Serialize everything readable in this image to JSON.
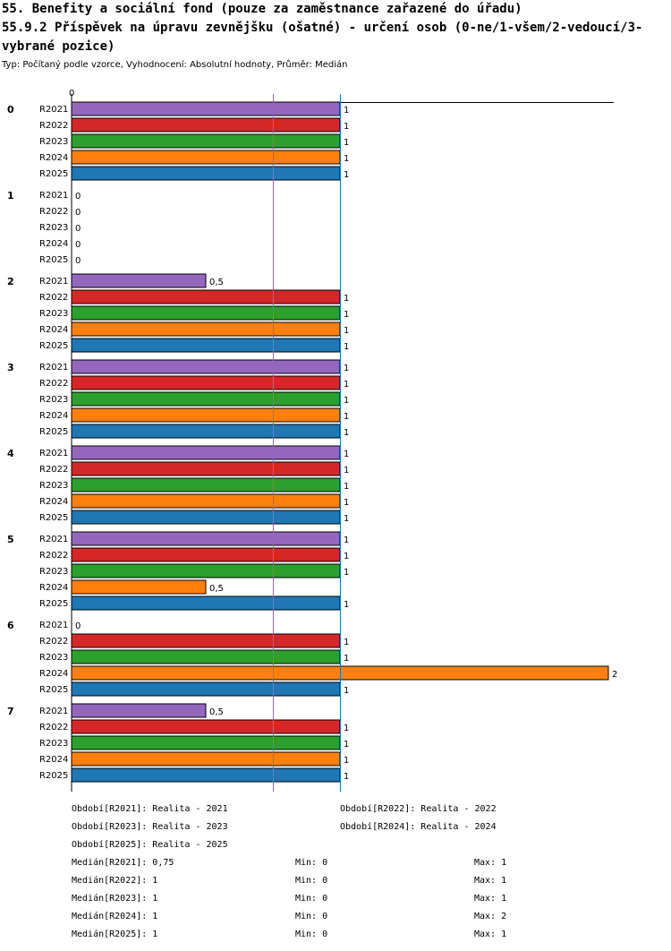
{
  "title": "55. Benefity a sociální fond (pouze za zaměstnance zařazené do úřadu)\n55.9.2 Příspěvek na úpravu zevnějšku (ošatné) - určení osob (0-ne/1-všem/2-vedoucí/3-vybrané pozice)",
  "subtitle": "Typ: Počítaný podle vzorce, Vyhodnocení: Absolutní hodnoty, Průměr: Medián",
  "colors": {
    "R2021": "#9467bd",
    "R2022": "#d62728",
    "R2023": "#2ca02c",
    "R2024": "#ff7f0e",
    "R2025": "#1f77b4",
    "median_line": "#9467bd",
    "ref_line": "#1f77b4"
  },
  "chart_data": {
    "type": "bar",
    "orientation": "horizontal",
    "x_min": 0,
    "x_max": 2,
    "x_tick_label": "0",
    "median_marker": 0.75,
    "reference_marker": 1,
    "groups": [
      "0",
      "1",
      "2",
      "3",
      "4",
      "5",
      "6",
      "7"
    ],
    "series_names": [
      "R2021",
      "R2022",
      "R2023",
      "R2024",
      "R2025"
    ],
    "values": [
      [
        1,
        1,
        1,
        1,
        1
      ],
      [
        0,
        0,
        0,
        0,
        0
      ],
      [
        0.5,
        1,
        1,
        1,
        1
      ],
      [
        1,
        1,
        1,
        1,
        1
      ],
      [
        1,
        1,
        1,
        1,
        1
      ],
      [
        1,
        1,
        1,
        0.5,
        1
      ],
      [
        0,
        1,
        1,
        2,
        1
      ],
      [
        0.5,
        1,
        1,
        1,
        1
      ]
    ],
    "value_labels": [
      [
        "1",
        "1",
        "1",
        "1",
        "1"
      ],
      [
        "0",
        "0",
        "0",
        "0",
        "0"
      ],
      [
        "0,5",
        "1",
        "1",
        "1",
        "1"
      ],
      [
        "1",
        "1",
        "1",
        "1",
        "1"
      ],
      [
        "1",
        "1",
        "1",
        "1",
        "1"
      ],
      [
        "1",
        "1",
        "1",
        "0,5",
        "1"
      ],
      [
        "0",
        "1",
        "1",
        "2",
        "1"
      ],
      [
        "0,5",
        "1",
        "1",
        "1",
        "1"
      ]
    ]
  },
  "legend": {
    "periods": [
      "Období[R2021]: Realita - 2021",
      "Období[R2022]: Realita - 2022",
      "Období[R2023]: Realita - 2023",
      "Období[R2024]: Realita - 2024",
      "Období[R2025]: Realita - 2025"
    ],
    "stats": [
      {
        "median": "Medián[R2021]: 0,75",
        "min": "Min: 0",
        "max": "Max: 1"
      },
      {
        "median": "Medián[R2022]: 1",
        "min": "Min: 0",
        "max": "Max: 1"
      },
      {
        "median": "Medián[R2023]: 1",
        "min": "Min: 0",
        "max": "Max: 1"
      },
      {
        "median": "Medián[R2024]: 1",
        "min": "Min: 0",
        "max": "Max: 2"
      },
      {
        "median": "Medián[R2025]: 1",
        "min": "Min: 0",
        "max": "Max: 1"
      }
    ]
  }
}
